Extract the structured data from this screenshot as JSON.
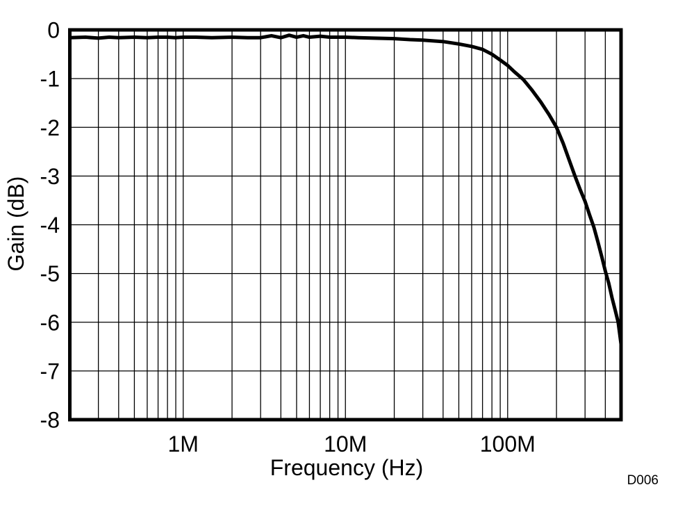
{
  "figure": {
    "watermark": "D006",
    "background_color": "#ffffff"
  },
  "chart_data": {
    "type": "line",
    "title": "",
    "xlabel": "Frequency (Hz)",
    "ylabel": "Gain (dB)",
    "x_scale": "log",
    "y_scale": "linear",
    "xlim": [
      200000,
      500000000
    ],
    "ylim": [
      -8,
      0
    ],
    "grid": "on, log minor verticals, major horizontals every 1 dB",
    "legend": "none",
    "x_ticks": [
      {
        "value": 1000000,
        "label": "1M"
      },
      {
        "value": 10000000,
        "label": "10M"
      },
      {
        "value": 100000000,
        "label": "100M"
      }
    ],
    "y_ticks": [
      {
        "value": 0,
        "label": "0"
      },
      {
        "value": -1,
        "label": "-1"
      },
      {
        "value": -2,
        "label": "-2"
      },
      {
        "value": -3,
        "label": "-3"
      },
      {
        "value": -4,
        "label": "-4"
      },
      {
        "value": -5,
        "label": "-5"
      },
      {
        "value": -6,
        "label": "-6"
      },
      {
        "value": -7,
        "label": "-7"
      },
      {
        "value": -8,
        "label": "-8"
      }
    ],
    "colors": {
      "line": "#000000",
      "grid": "#000000",
      "frame": "#000000",
      "watermark": "#919599",
      "background": "#ffffff"
    },
    "series": [
      {
        "name": "Gain",
        "points_units": "[Hz, dB]",
        "points": [
          [
            200000,
            -0.16
          ],
          [
            250000,
            -0.15
          ],
          [
            300000,
            -0.17
          ],
          [
            350000,
            -0.15
          ],
          [
            400000,
            -0.16
          ],
          [
            500000,
            -0.15
          ],
          [
            600000,
            -0.16
          ],
          [
            700000,
            -0.15
          ],
          [
            800000,
            -0.15
          ],
          [
            900000,
            -0.16
          ],
          [
            1000000,
            -0.15
          ],
          [
            1200000,
            -0.15
          ],
          [
            1500000,
            -0.16
          ],
          [
            2000000,
            -0.15
          ],
          [
            2500000,
            -0.16
          ],
          [
            3000000,
            -0.16
          ],
          [
            3500000,
            -0.12
          ],
          [
            4000000,
            -0.16
          ],
          [
            4500000,
            -0.11
          ],
          [
            5000000,
            -0.15
          ],
          [
            5500000,
            -0.12
          ],
          [
            6000000,
            -0.15
          ],
          [
            7000000,
            -0.13
          ],
          [
            8000000,
            -0.15
          ],
          [
            9000000,
            -0.15
          ],
          [
            10000000,
            -0.15
          ],
          [
            12000000,
            -0.16
          ],
          [
            15000000,
            -0.17
          ],
          [
            20000000,
            -0.18
          ],
          [
            25000000,
            -0.2
          ],
          [
            30000000,
            -0.21
          ],
          [
            40000000,
            -0.24
          ],
          [
            50000000,
            -0.29
          ],
          [
            60000000,
            -0.34
          ],
          [
            70000000,
            -0.4
          ],
          [
            80000000,
            -0.5
          ],
          [
            90000000,
            -0.62
          ],
          [
            100000000,
            -0.73
          ],
          [
            110000000,
            -0.86
          ],
          [
            125000000,
            -1.02
          ],
          [
            140000000,
            -1.22
          ],
          [
            160000000,
            -1.48
          ],
          [
            180000000,
            -1.74
          ],
          [
            200000000,
            -2.0
          ],
          [
            220000000,
            -2.33
          ],
          [
            240000000,
            -2.68
          ],
          [
            260000000,
            -3.0
          ],
          [
            280000000,
            -3.28
          ],
          [
            300000000,
            -3.52
          ],
          [
            320000000,
            -3.8
          ],
          [
            340000000,
            -4.05
          ],
          [
            360000000,
            -4.35
          ],
          [
            380000000,
            -4.65
          ],
          [
            400000000,
            -4.95
          ],
          [
            420000000,
            -5.2
          ],
          [
            440000000,
            -5.5
          ],
          [
            460000000,
            -5.75
          ],
          [
            480000000,
            -6.0
          ],
          [
            500000000,
            -6.45
          ]
        ]
      }
    ]
  }
}
